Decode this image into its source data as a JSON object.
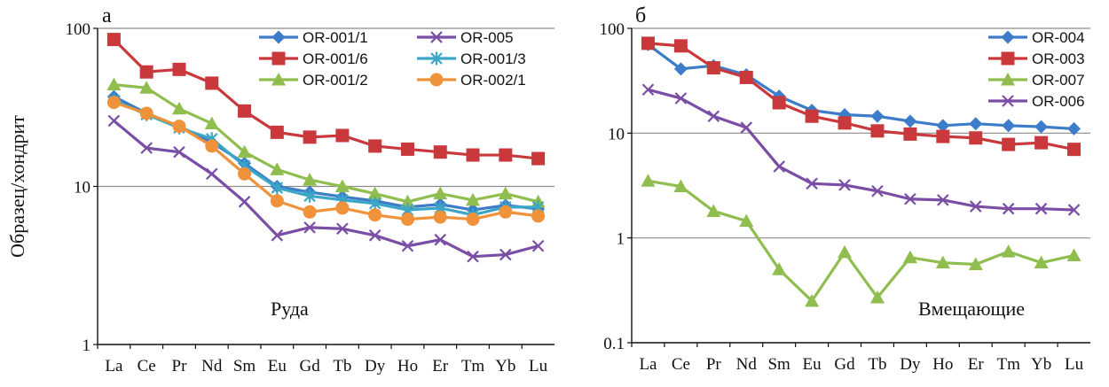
{
  "colors": {
    "blue": "#3d7cc9",
    "red": "#c9383b",
    "green": "#8fbe4f",
    "purple": "#7a4ea5",
    "cyan": "#3ba6c6",
    "orange": "#f0923a"
  },
  "chart_data": [
    {
      "type": "line",
      "panel_label": "а",
      "annotation": "Руда",
      "ylabel": "Образец/хондрит",
      "yscale": "log",
      "ylim": [
        1,
        100
      ],
      "yticks": [
        "100",
        "10",
        "1"
      ],
      "grid": true,
      "legend_placement": "top-right",
      "categories": [
        "La",
        "Ce",
        "Pr",
        "Nd",
        "Sm",
        "Eu",
        "Gd",
        "Tb",
        "Dy",
        "Ho",
        "Er",
        "Tm",
        "Yb",
        "Lu"
      ],
      "series": [
        {
          "name": "OR-001/1",
          "color": "#3d7cc9",
          "marker": "diamond",
          "values": [
            37,
            29,
            24,
            19,
            14,
            10,
            9.2,
            8.6,
            8.1,
            7.4,
            7.7,
            7.1,
            7.6,
            7.2
          ]
        },
        {
          "name": "OR-001/6",
          "color": "#c9383b",
          "marker": "square",
          "values": [
            85,
            53,
            55,
            45,
            30,
            22,
            20.5,
            21,
            18,
            17.2,
            16.5,
            15.8,
            15.8,
            15
          ]
        },
        {
          "name": "OR-001/2",
          "color": "#8fbe4f",
          "marker": "triangle",
          "values": [
            44,
            42,
            31,
            25,
            16.5,
            12.8,
            11,
            10,
            9,
            8,
            9,
            8.2,
            9,
            8
          ]
        },
        {
          "name": "OR-005",
          "color": "#7a4ea5",
          "marker": "x",
          "values": [
            26,
            17.5,
            16.5,
            12,
            8,
            4.9,
            5.5,
            5.4,
            4.9,
            4.2,
            4.6,
            3.6,
            3.7,
            4.2
          ]
        },
        {
          "name": "OR-001/3",
          "color": "#3ba6c6",
          "marker": "asterisk",
          "values": [
            35,
            28.5,
            23.5,
            20,
            13.5,
            9.8,
            8.7,
            8.2,
            7.8,
            7.1,
            7.3,
            6.6,
            7.4,
            7.4
          ]
        },
        {
          "name": "OR-002/1",
          "color": "#f0923a",
          "marker": "circle",
          "values": [
            34,
            29,
            24,
            18,
            12,
            8.1,
            6.9,
            7.3,
            6.6,
            6.2,
            6.4,
            6.2,
            6.9,
            6.5
          ]
        }
      ]
    },
    {
      "type": "line",
      "panel_label": "б",
      "annotation": "Вмещающие",
      "yscale": "log",
      "ylim": [
        0.1,
        100
      ],
      "yticks": [
        "100",
        "10",
        "1",
        "0.1"
      ],
      "grid": true,
      "legend_placement": "top-right",
      "categories": [
        "La",
        "Ce",
        "Pr",
        "Nd",
        "Sm",
        "Eu",
        "Gd",
        "Tb",
        "Dy",
        "Ho",
        "Er",
        "Tm",
        "Yb",
        "Lu"
      ],
      "series": [
        {
          "name": "OR-004",
          "color": "#3d7cc9",
          "marker": "diamond",
          "values": [
            70,
            41,
            44,
            36,
            22.5,
            16.5,
            15,
            14.5,
            13,
            11.8,
            12.3,
            11.8,
            11.5,
            11
          ]
        },
        {
          "name": "OR-003",
          "color": "#c9383b",
          "marker": "square",
          "values": [
            72,
            68,
            42,
            34,
            19.5,
            14.5,
            12.5,
            10.5,
            9.8,
            9.3,
            9,
            7.8,
            8.1,
            7
          ]
        },
        {
          "name": "OR-007",
          "color": "#8fbe4f",
          "marker": "triangle",
          "values": [
            3.5,
            3.1,
            1.8,
            1.45,
            0.5,
            0.25,
            0.73,
            0.27,
            0.65,
            0.58,
            0.56,
            0.74,
            0.58,
            0.68
          ]
        },
        {
          "name": "OR-006",
          "color": "#7a4ea5",
          "marker": "x",
          "values": [
            26,
            21.5,
            14.5,
            11.3,
            4.8,
            3.3,
            3.2,
            2.8,
            2.35,
            2.3,
            2,
            1.9,
            1.9,
            1.85
          ]
        }
      ]
    }
  ]
}
